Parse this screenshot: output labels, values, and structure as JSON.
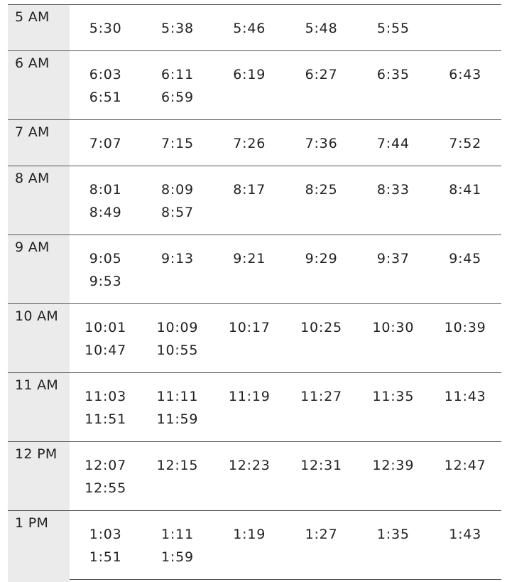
{
  "schedule": [
    {
      "hour": "5 AM",
      "times": [
        "5:30",
        "5:38",
        "5:46",
        "5:48",
        "5:55"
      ]
    },
    {
      "hour": "6 AM",
      "times": [
        "6:03",
        "6:11",
        "6:19",
        "6:27",
        "6:35",
        "6:43",
        "6:51",
        "6:59"
      ]
    },
    {
      "hour": "7 AM",
      "times": [
        "7:07",
        "7:15",
        "7:26",
        "7:36",
        "7:44",
        "7:52"
      ]
    },
    {
      "hour": "8 AM",
      "times": [
        "8:01",
        "8:09",
        "8:17",
        "8:25",
        "8:33",
        "8:41",
        "8:49",
        "8:57"
      ]
    },
    {
      "hour": "9 AM",
      "times": [
        "9:05",
        "9:13",
        "9:21",
        "9:29",
        "9:37",
        "9:45",
        "9:53"
      ]
    },
    {
      "hour": "10 AM",
      "times": [
        "10:01",
        "10:09",
        "10:17",
        "10:25",
        "10:30",
        "10:39",
        "10:47",
        "10:55"
      ]
    },
    {
      "hour": "11 AM",
      "times": [
        "11:03",
        "11:11",
        "11:19",
        "11:27",
        "11:35",
        "11:43",
        "11:51",
        "11:59"
      ]
    },
    {
      "hour": "12 PM",
      "times": [
        "12:07",
        "12:15",
        "12:23",
        "12:31",
        "12:39",
        "12:47",
        "12:55"
      ]
    },
    {
      "hour": "1 PM",
      "times": [
        "1:03",
        "1:11",
        "1:19",
        "1:27",
        "1:35",
        "1:43",
        "1:51",
        "1:59"
      ]
    }
  ]
}
